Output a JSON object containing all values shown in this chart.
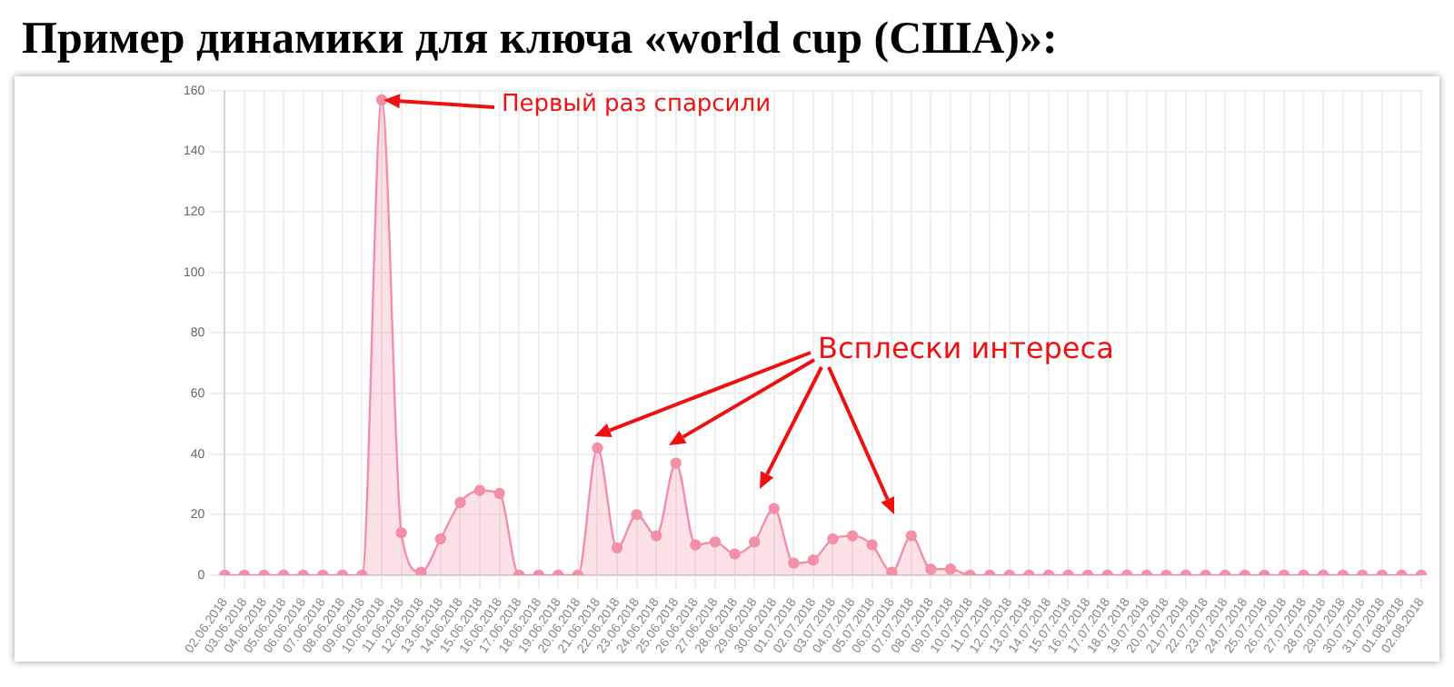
{
  "chart_data": {
    "type": "area",
    "title": "Пример динамики для ключа «world cup (США)»:",
    "categories": [
      "02.06.2018",
      "03.06.2018",
      "04.06.2018",
      "05.06.2018",
      "06.06.2018",
      "07.06.2018",
      "08.06.2018",
      "09.06.2018",
      "10.06.2018",
      "11.06.2018",
      "12.06.2018",
      "13.06.2018",
      "14.06.2018",
      "15.06.2018",
      "16.06.2018",
      "17.06.2018",
      "18.06.2018",
      "19.06.2018",
      "20.06.2018",
      "21.06.2018",
      "22.06.2018",
      "23.06.2018",
      "24.06.2018",
      "25.06.2018",
      "26.06.2018",
      "27.06.2018",
      "28.06.2018",
      "29.06.2018",
      "30.06.2018",
      "01.07.2018",
      "02.07.2018",
      "03.07.2018",
      "04.07.2018",
      "05.07.2018",
      "06.07.2018",
      "07.07.2018",
      "08.07.2018",
      "09.07.2018",
      "10.07.2018",
      "11.07.2018",
      "12.07.2018",
      "13.07.2018",
      "14.07.2018",
      "15.07.2018",
      "16.07.2018",
      "17.07.2018",
      "18.07.2018",
      "19.07.2018",
      "20.07.2018",
      "21.07.2018",
      "22.07.2018",
      "23.07.2018",
      "24.07.2018",
      "25.07.2018",
      "26.07.2018",
      "27.07.2018",
      "28.07.2018",
      "29.07.2018",
      "30.07.2018",
      "31.07.2018",
      "01.08.2018",
      "02.08.2018"
    ],
    "series": [
      {
        "color": "#f48fa8",
        "values": [
          0,
          0,
          0,
          0,
          0,
          0,
          0,
          0,
          157,
          14,
          1,
          12,
          24,
          28,
          27,
          0,
          0,
          0,
          0,
          42,
          9,
          20,
          13,
          37,
          10,
          11,
          7,
          11,
          22,
          4,
          5,
          12,
          13,
          10,
          1,
          13,
          2,
          2,
          0,
          0,
          0,
          0,
          0,
          0,
          0,
          0,
          0,
          0,
          0,
          0,
          0,
          0,
          0,
          0,
          0,
          0,
          0,
          0,
          0,
          0,
          0,
          0
        ]
      }
    ],
    "ylim": [
      0,
      160
    ],
    "yticks": [
      0,
      20,
      40,
      60,
      80,
      100,
      120,
      140,
      160
    ],
    "grid": true,
    "marker": "circle",
    "legend": false,
    "annotations": [
      "Первый раз спарсили",
      "Всплески интереса"
    ]
  }
}
